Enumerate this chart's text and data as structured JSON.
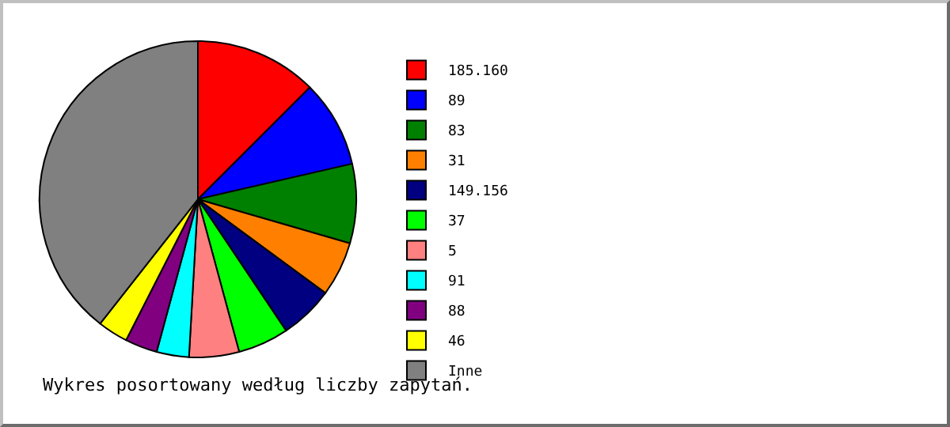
{
  "chart_data": {
    "type": "pie",
    "categories": [
      "185.160",
      "89",
      "83",
      "31",
      "149.156",
      "37",
      "5",
      "91",
      "88",
      "46",
      "Inne"
    ],
    "values": [
      12.5,
      8.9,
      8.1,
      5.6,
      5.5,
      5.2,
      5.1,
      3.3,
      3.3,
      3.1,
      39.4
    ],
    "colors": [
      "#ff0000",
      "#0000ff",
      "#008000",
      "#ff8000",
      "#000080",
      "#00ff00",
      "#ff8080",
      "#00ffff",
      "#800080",
      "#ffff00",
      "#808080"
    ],
    "legend": "right",
    "annotations": [
      "Wykres posortowany według liczby zapytań."
    ]
  }
}
